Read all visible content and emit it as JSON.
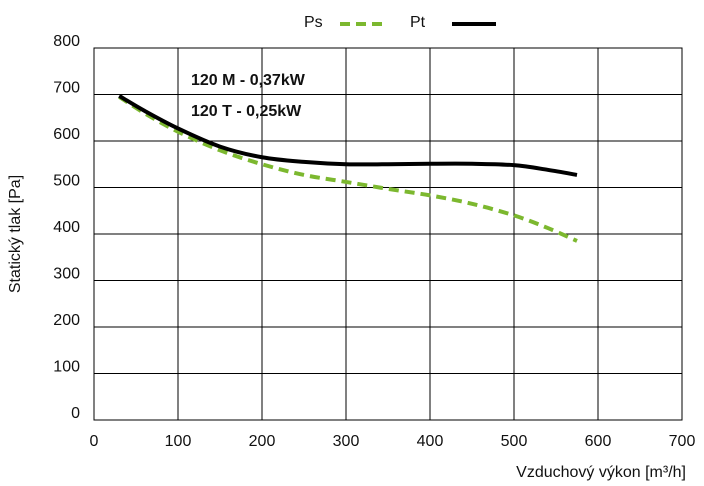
{
  "chart_data": {
    "type": "line",
    "xlabel": "Vzduchový výkon [m³/h]",
    "ylabel": "Statický tlak [Pa]",
    "xlim": [
      0,
      700
    ],
    "ylim": [
      0,
      800
    ],
    "xticks": [
      "0",
      "100",
      "200",
      "300",
      "400",
      "500",
      "600",
      "700"
    ],
    "yticks": [
      "0",
      "100",
      "200",
      "300",
      "400",
      "500",
      "600",
      "700",
      "800"
    ],
    "grid": true,
    "legend_position": "top-center",
    "annotations": [
      "120 M - 0,37kW",
      "120 T - 0,25kW"
    ],
    "series": [
      {
        "name": "Ps",
        "color": "#7cb82f",
        "style": "dashed",
        "x": [
          30,
          60,
          100,
          150,
          200,
          250,
          300,
          350,
          400,
          450,
          500,
          540,
          575
        ],
        "y": [
          695,
          660,
          620,
          580,
          550,
          527,
          512,
          497,
          483,
          465,
          440,
          413,
          385
        ]
      },
      {
        "name": "Pt",
        "color": "#000000",
        "style": "solid",
        "x": [
          30,
          60,
          100,
          150,
          200,
          250,
          300,
          350,
          400,
          450,
          500,
          540,
          575
        ],
        "y": [
          697,
          665,
          627,
          588,
          565,
          555,
          550,
          550,
          551,
          551,
          548,
          538,
          527
        ]
      }
    ]
  }
}
